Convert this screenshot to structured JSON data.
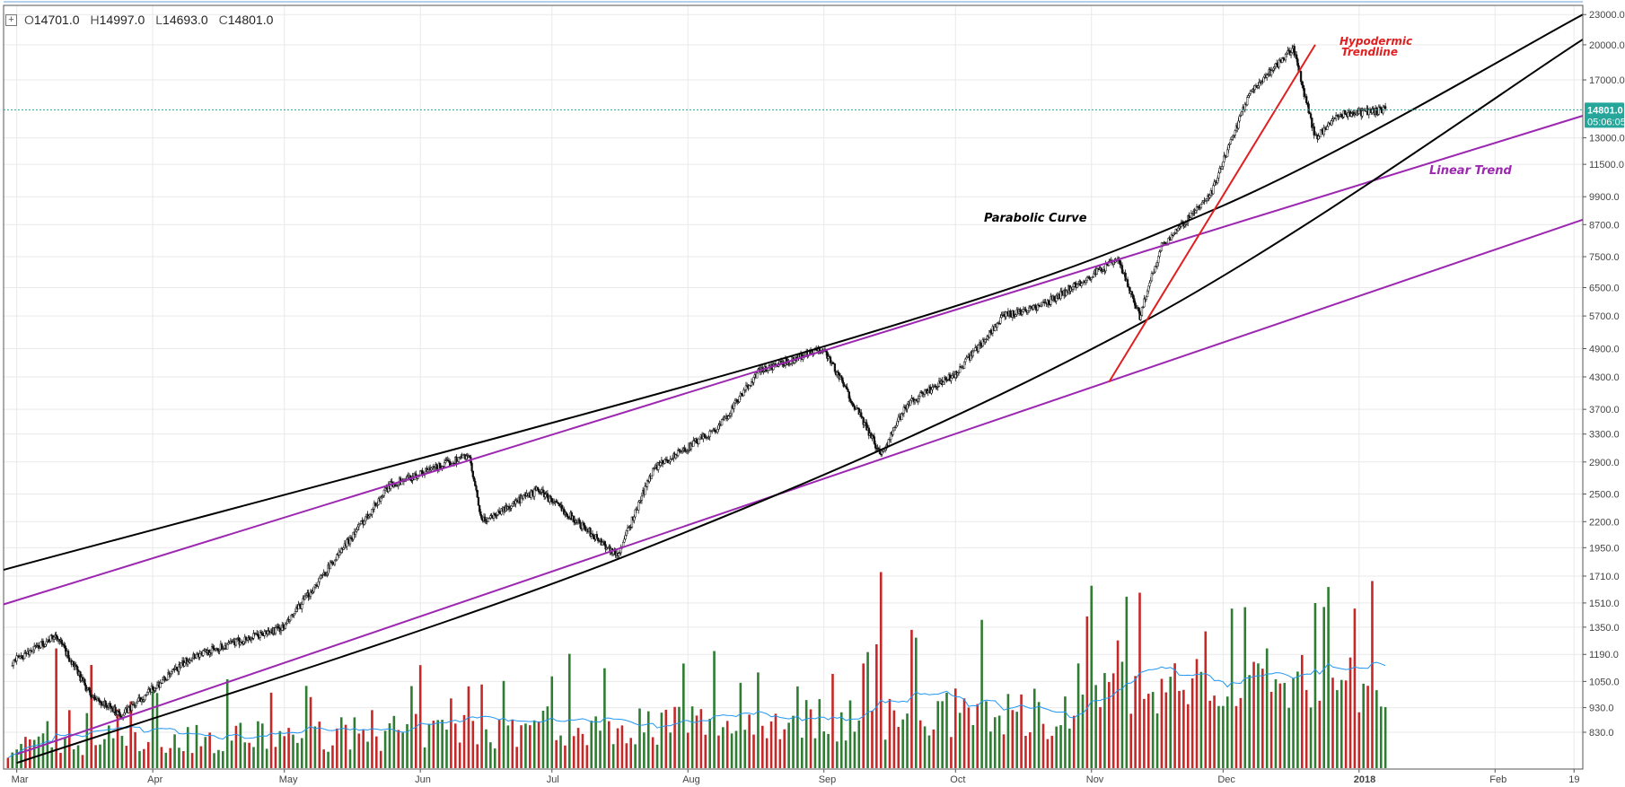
{
  "ohlc": {
    "o_label": "O",
    "o": "14701.0",
    "h_label": "H",
    "h": "14997.0",
    "l_label": "L",
    "l": "14693.0",
    "c_label": "C",
    "c": "14801.0",
    "expand_icon": "plus-box-icon"
  },
  "price_tag": {
    "value": "14801.0",
    "countdown": "05:06:05",
    "color": "#26a69a"
  },
  "colors": {
    "up": "#2e7d32",
    "down": "#c62828",
    "volume_ma": "#2196f3",
    "trend": "#9c27b0",
    "parabola": "#000000",
    "hypodermic": "#e02020",
    "grid": "#e9e9e9",
    "price_line": "#26a69a"
  },
  "chart_data": {
    "type": "candlestick",
    "y_scale": "log",
    "y_ticks": [
      "23000.0",
      "20000.0",
      "17000.0",
      "14801.0",
      "13000.0",
      "11500.0",
      "9900.0",
      "8700.0",
      "7500.0",
      "6500.0",
      "5700.0",
      "4900.0",
      "4300.0",
      "3700.0",
      "3300.0",
      "2900.0",
      "2500.0",
      "2200.0",
      "1950.0",
      "1710.0",
      "1510.0",
      "1350.0",
      "1190.0",
      "1050.0",
      "930.0",
      "830.0"
    ],
    "y_tick_values": [
      23000,
      20000,
      17000,
      13000,
      11500,
      9900,
      8700,
      7500,
      6500,
      5700,
      4900,
      4300,
      3700,
      3300,
      2900,
      2500,
      2200,
      1950,
      1710,
      1510,
      1350,
      1190,
      1050,
      930,
      830
    ],
    "ylim": [
      700,
      24000
    ],
    "x_ticks": [
      "Mar",
      "Apr",
      "May",
      "Jun",
      "Jul",
      "Aug",
      "Sep",
      "Oct",
      "Nov",
      "Dec",
      "2018",
      "Feb",
      "19"
    ],
    "price_keypoints": [
      {
        "date": "2017-02-28",
        "price": 1150
      },
      {
        "date": "2017-03-10",
        "price": 1300
      },
      {
        "date": "2017-03-18",
        "price": 980
      },
      {
        "date": "2017-03-25",
        "price": 900
      },
      {
        "date": "2017-04-10",
        "price": 1180
      },
      {
        "date": "2017-05-01",
        "price": 1350
      },
      {
        "date": "2017-05-25",
        "price": 2600
      },
      {
        "date": "2017-06-08",
        "price": 2900
      },
      {
        "date": "2017-06-12",
        "price": 3000
      },
      {
        "date": "2017-06-15",
        "price": 2200
      },
      {
        "date": "2017-06-28",
        "price": 2550
      },
      {
        "date": "2017-07-16",
        "price": 1880
      },
      {
        "date": "2017-07-24",
        "price": 2800
      },
      {
        "date": "2017-08-08",
        "price": 3400
      },
      {
        "date": "2017-08-17",
        "price": 4400
      },
      {
        "date": "2017-09-01",
        "price": 4900
      },
      {
        "date": "2017-09-14",
        "price": 3000
      },
      {
        "date": "2017-09-20",
        "price": 3800
      },
      {
        "date": "2017-10-01",
        "price": 4350
      },
      {
        "date": "2017-10-12",
        "price": 5700
      },
      {
        "date": "2017-10-21",
        "price": 6000
      },
      {
        "date": "2017-11-07",
        "price": 7400
      },
      {
        "date": "2017-11-12",
        "price": 5700
      },
      {
        "date": "2017-11-17",
        "price": 7900
      },
      {
        "date": "2017-11-28",
        "price": 9900
      },
      {
        "date": "2017-12-07",
        "price": 16000
      },
      {
        "date": "2017-12-17",
        "price": 19700
      },
      {
        "date": "2017-12-22",
        "price": 13000
      },
      {
        "date": "2017-12-28",
        "price": 14500
      },
      {
        "date": "2018-01-07",
        "price": 14801
      }
    ],
    "volume_spikes": [
      {
        "date": "2017-09-14",
        "height": 0.95
      },
      {
        "date": "2017-11-12",
        "height": 0.85
      },
      {
        "date": "2017-12-22",
        "height": 0.8
      },
      {
        "date": "2017-12-06",
        "height": 0.78
      },
      {
        "date": "2017-09-13",
        "height": 0.6
      },
      {
        "date": "2017-12-11",
        "height": 0.58
      },
      {
        "date": "2017-03-10",
        "height": 0.58
      },
      {
        "date": "2017-03-18",
        "height": 0.5
      }
    ],
    "annotations": [
      {
        "text": "Parabolic Curve",
        "color": "#000000"
      },
      {
        "text": "Linear Trend",
        "color": "#9c27b0"
      },
      {
        "text": "Hypodermic",
        "color": "#e02020"
      },
      {
        "text": "Trendline",
        "color": "#e02020"
      }
    ],
    "drawings": [
      {
        "kind": "line",
        "name": "upper-linear-trend",
        "color": "#9c27b0",
        "p1": {
          "date": "2017-02-26",
          "price": 1500
        },
        "p2": {
          "date": "2018-02-21",
          "price": 14400
        }
      },
      {
        "kind": "line",
        "name": "lower-linear-trend",
        "color": "#9c27b0",
        "p1": {
          "date": "2017-03-01",
          "price": 750
        },
        "p2": {
          "date": "2018-02-21",
          "price": 8900
        }
      },
      {
        "kind": "curve",
        "name": "upper-parabolic-curve",
        "color": "#000000",
        "points": [
          {
            "date": "2017-02-26",
            "price": 1760
          },
          {
            "date": "2017-09-01",
            "price": 4950
          },
          {
            "date": "2017-12-01",
            "price": 9500
          },
          {
            "date": "2018-02-21",
            "price": 23000
          }
        ]
      },
      {
        "kind": "curve",
        "name": "lower-parabolic-curve",
        "color": "#000000",
        "points": [
          {
            "date": "2017-03-01",
            "price": 720
          },
          {
            "date": "2017-07-16",
            "price": 1850
          },
          {
            "date": "2017-11-12",
            "price": 5500
          },
          {
            "date": "2018-02-21",
            "price": 20500
          }
        ]
      },
      {
        "kind": "line",
        "name": "hypodermic-trendline",
        "color": "#e02020",
        "p1": {
          "date": "2017-11-05",
          "price": 4200
        },
        "p2": {
          "date": "2017-12-22",
          "price": 20000
        }
      }
    ]
  }
}
